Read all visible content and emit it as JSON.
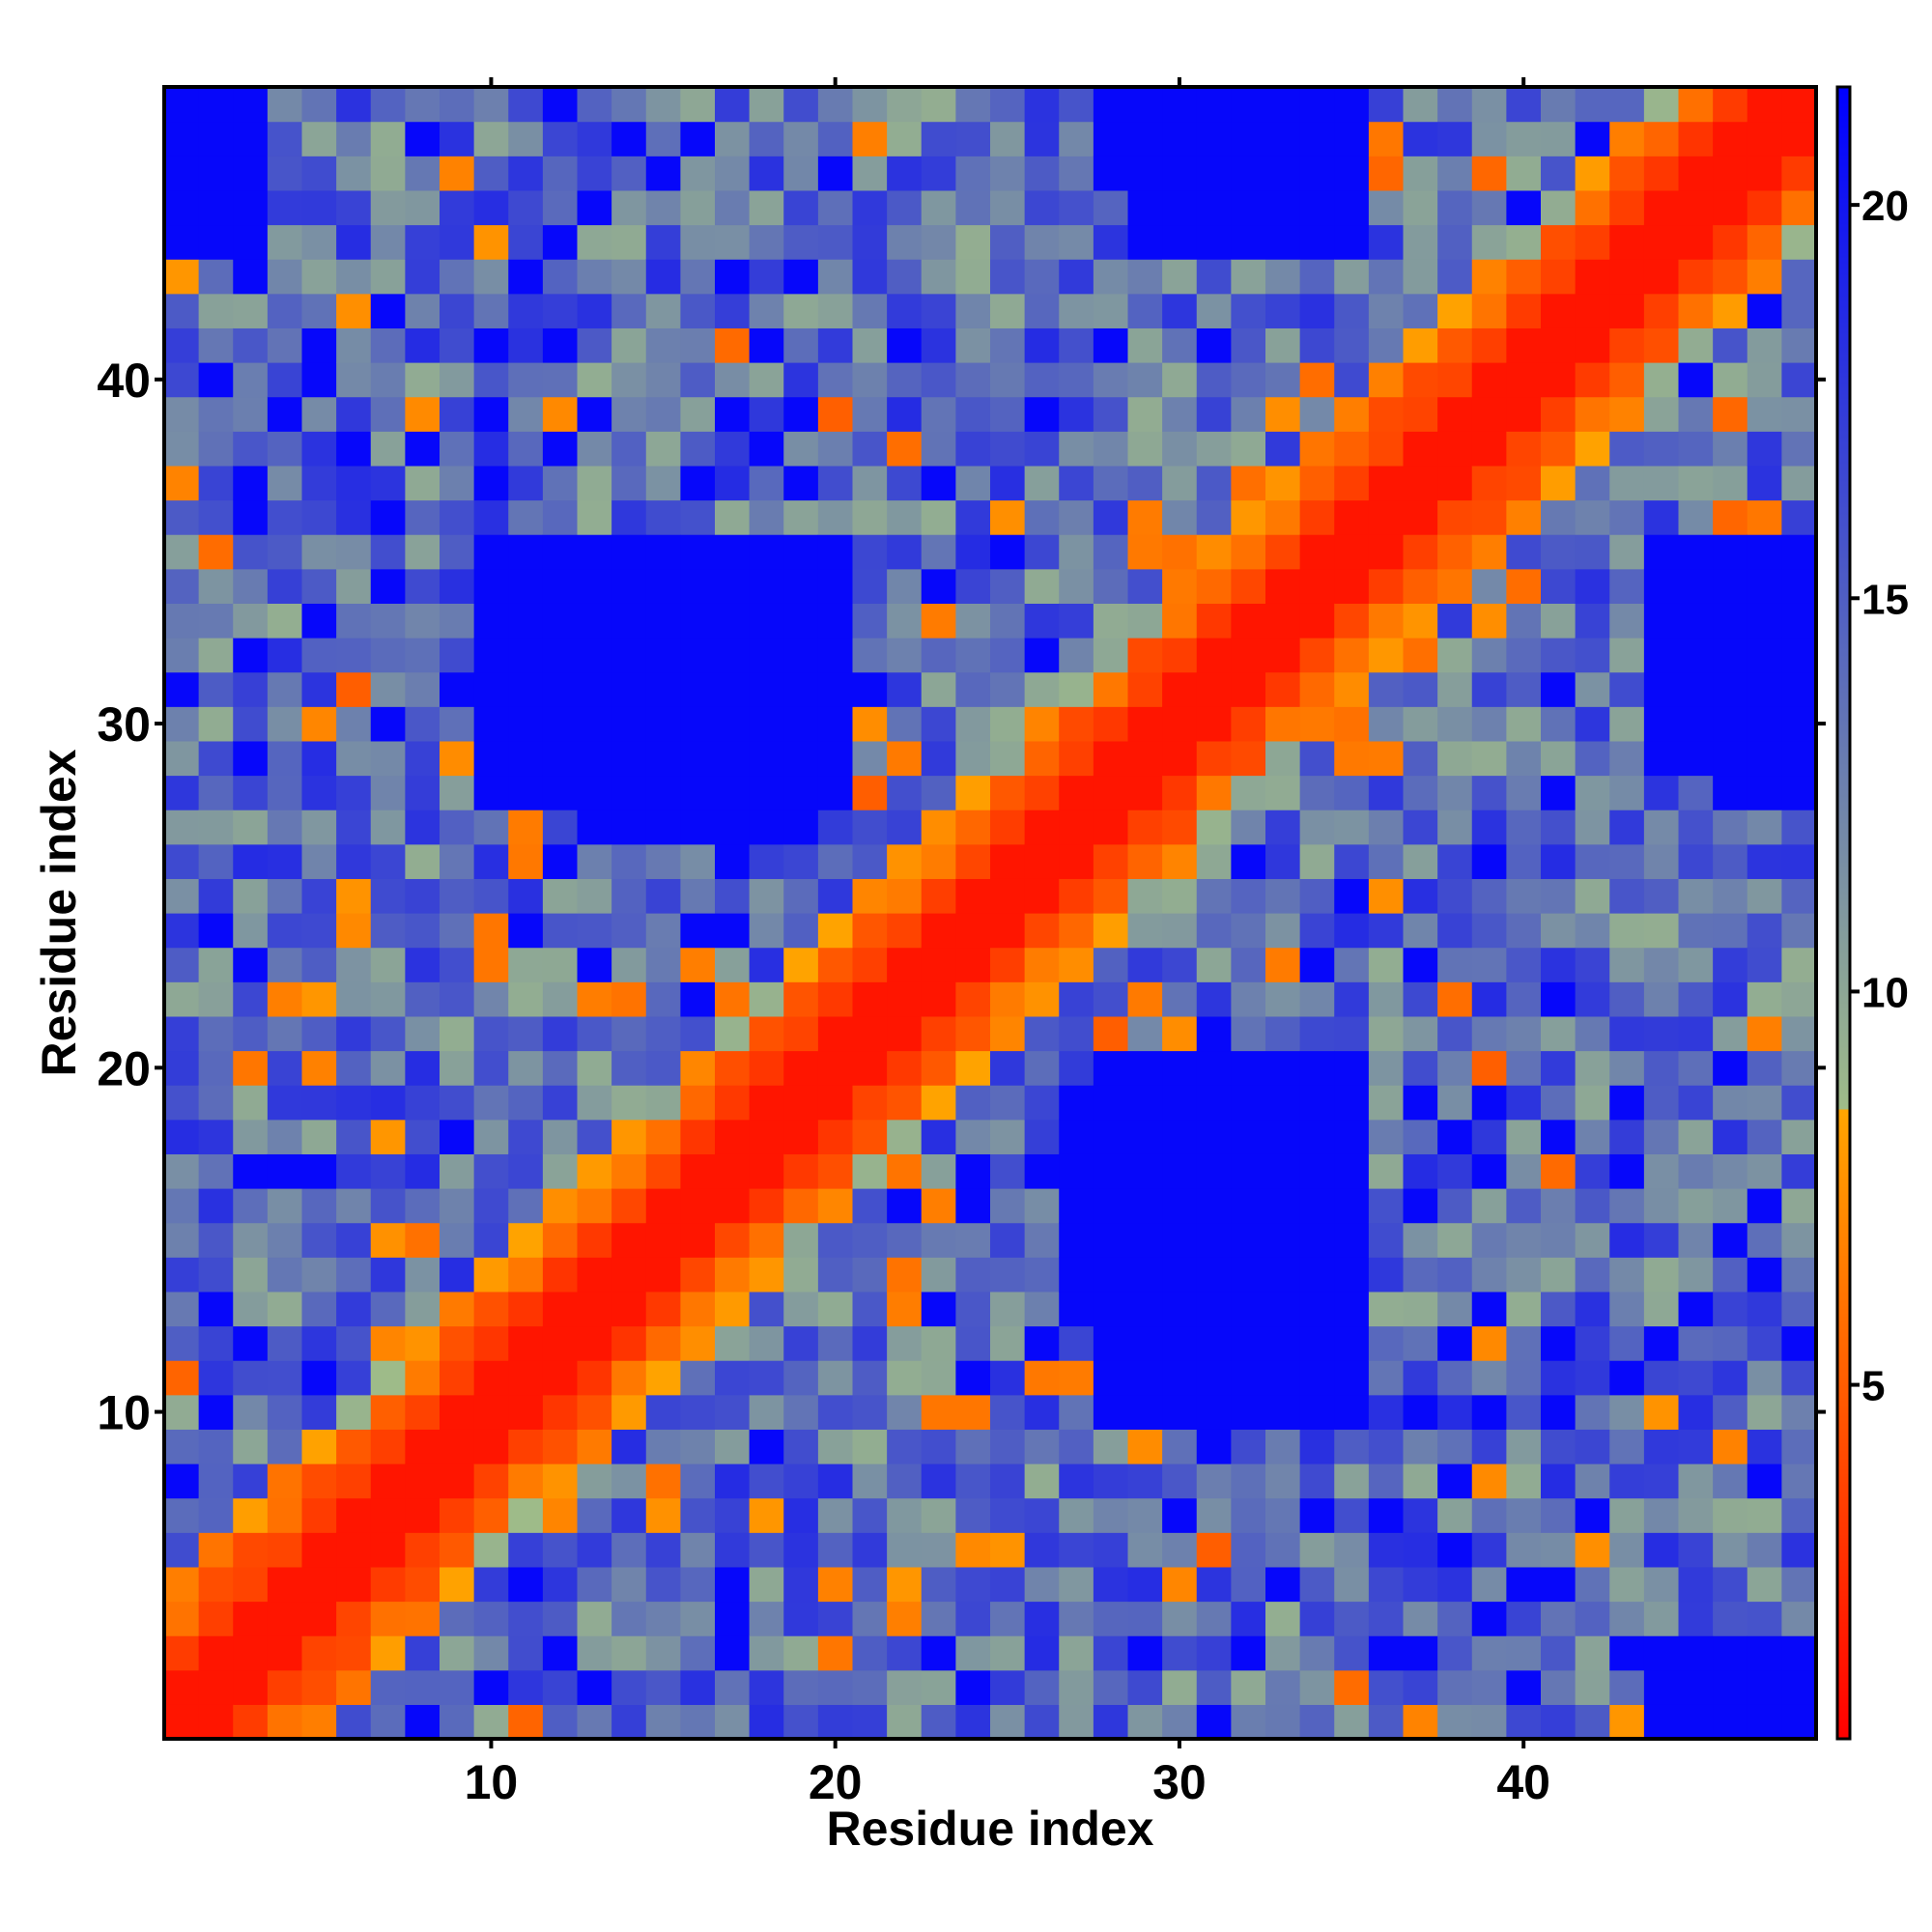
{
  "chart_data": {
    "type": "heatmap",
    "title": "",
    "xlabel": "Residue index",
    "ylabel": "Residue index",
    "n_residues": 48,
    "xlim": [
      0.5,
      48.5
    ],
    "ylim": [
      0.5,
      48.5
    ],
    "x_ticks": [
      10,
      20,
      30,
      40
    ],
    "x_tick_labels": [
      "10",
      "20",
      "30",
      "40"
    ],
    "y_ticks": [
      10,
      20,
      30,
      40
    ],
    "y_tick_labels": [
      "10",
      "20",
      "30",
      "40"
    ],
    "colorbar": {
      "min": 0.5,
      "max": 21.5,
      "ticks": [
        5,
        10,
        15,
        20
      ],
      "tick_labels": [
        "5",
        "10",
        "15",
        "20"
      ],
      "colors": [
        {
          "value": 0.5,
          "color": "#ff0000"
        },
        {
          "value": 8.5,
          "color": "#ffa500"
        },
        {
          "value": 8.5,
          "color": "#9fbc88"
        },
        {
          "value": 21.5,
          "color": "#0000ff"
        }
      ]
    },
    "description_values": "symmetric residue-residue distance map: near-diagonal values small (red/orange), far values large (blue)",
    "value_model": {
      "diagonal_band": [
        0,
        1,
        2
      ],
      "base_min": 9.5,
      "base_max": 18.5,
      "blue_threshold": 20.5,
      "blue_blocks": [
        {
          "i": [
            27,
            35
          ],
          "j": [
            13,
            19
          ],
          "value": 21
        },
        {
          "i": [
            10,
            20
          ],
          "j": [
            28,
            35
          ],
          "value": 21
        },
        {
          "i": [
            44,
            48
          ],
          "j": [
            1,
            3
          ],
          "value": 21
        },
        {
          "i": [
            44,
            48
          ],
          "j": [
            29,
            35
          ],
          "value": 21
        },
        {
          "i": [
            28,
            34
          ],
          "j": [
            46,
            48
          ],
          "value": 21
        },
        {
          "i": [
            1,
            3
          ],
          "j": [
            45,
            48
          ],
          "value": 21
        }
      ]
    }
  }
}
